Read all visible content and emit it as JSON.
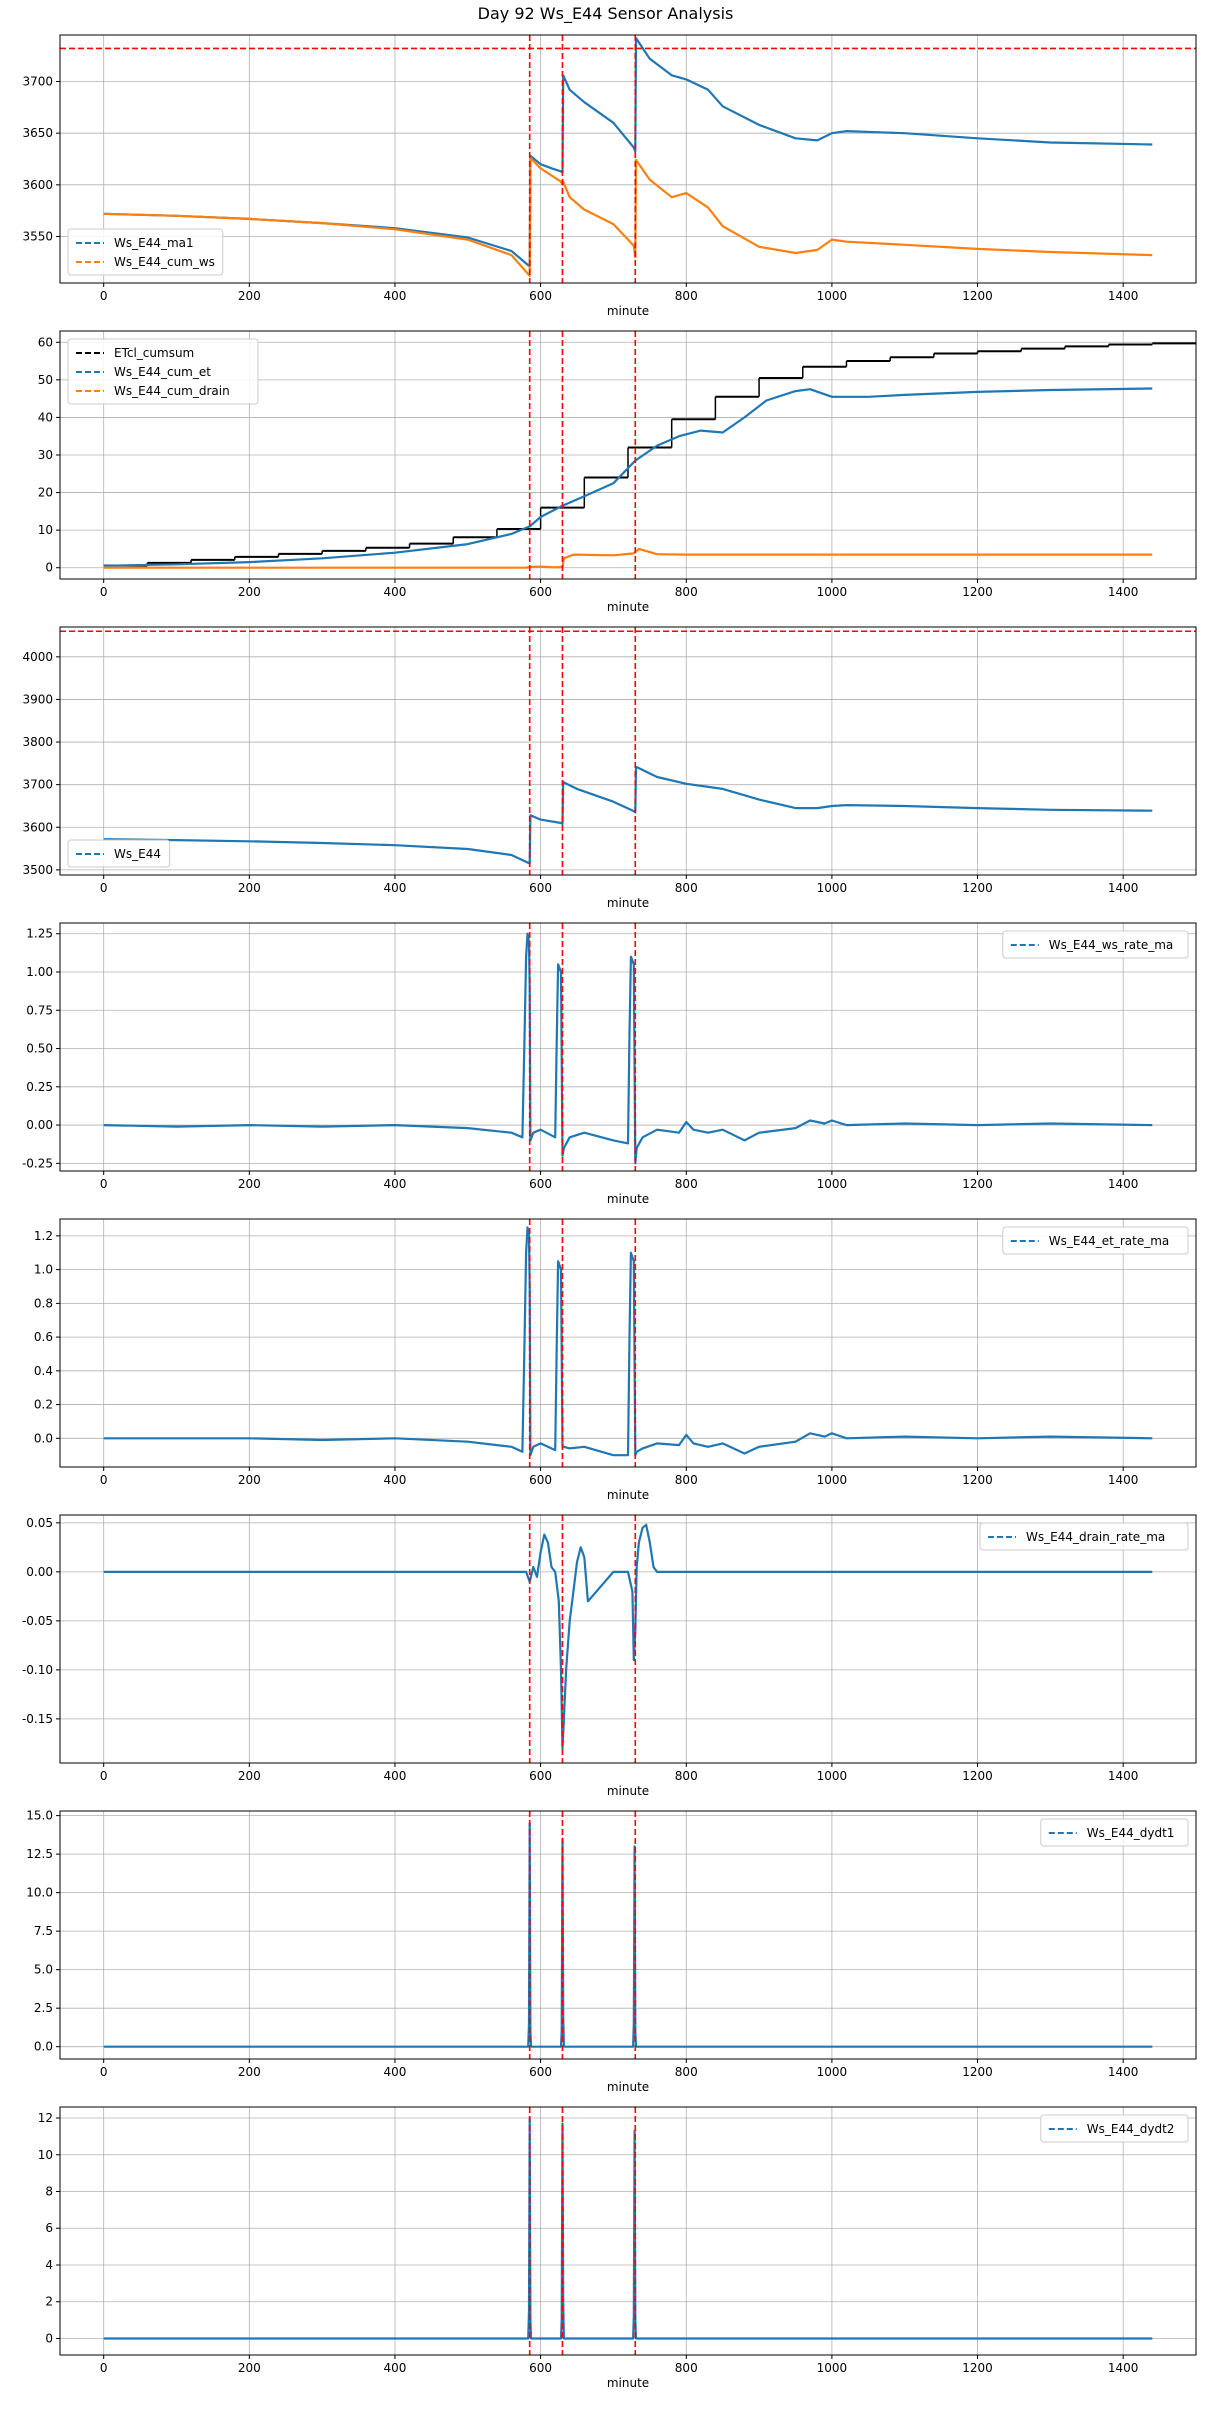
{
  "page_title": "Day 92 Ws_E44 Sensor Analysis",
  "colors": {
    "blue": "#1f77b4",
    "orange": "#ff7f0e",
    "black": "#000000",
    "red": "#ff0000",
    "grid": "#b0b0b0"
  },
  "chart_data": [
    {
      "type": "line",
      "xlabel": "minute",
      "xlim": [
        -60,
        1500
      ],
      "ylim": [
        3505,
        3745
      ],
      "xticks": [
        0,
        200,
        400,
        600,
        800,
        1000,
        1200,
        1400
      ],
      "yticks": [
        3550,
        3600,
        3650,
        3700
      ],
      "legend": "lower-left",
      "hlines": [
        3732
      ],
      "vlines": [
        585,
        630,
        730
      ],
      "series": [
        {
          "name": "Ws_E44_ma1",
          "color": "#1f77b4",
          "style": "dashed",
          "x": [
            0,
            100,
            200,
            300,
            400,
            500,
            560,
            585,
            586,
            600,
            615,
            628,
            630,
            631,
            640,
            660,
            700,
            728,
            730,
            731,
            750,
            780,
            800,
            830,
            850,
            900,
            950,
            980,
            1000,
            1020,
            1100,
            1200,
            1300,
            1440
          ],
          "y": [
            3572,
            3570,
            3567,
            3563,
            3558,
            3549,
            3536,
            3521,
            3628,
            3620,
            3616,
            3613,
            3612,
            3706,
            3692,
            3680,
            3660,
            3636,
            3632,
            3742,
            3722,
            3706,
            3702,
            3692,
            3676,
            3658,
            3645,
            3643,
            3650,
            3652,
            3650,
            3645,
            3641,
            3639
          ]
        },
        {
          "name": "Ws_E44_cum_ws",
          "color": "#ff7f0e",
          "style": "dashed",
          "x": [
            0,
            100,
            200,
            300,
            400,
            500,
            560,
            585,
            586,
            600,
            615,
            628,
            630,
            631,
            640,
            660,
            700,
            728,
            730,
            731,
            750,
            780,
            800,
            830,
            850,
            900,
            950,
            980,
            1000,
            1020,
            1100,
            1200,
            1300,
            1440
          ],
          "y": [
            3572,
            3570,
            3567,
            3563,
            3557,
            3547,
            3532,
            3512,
            3626,
            3616,
            3609,
            3603,
            3600,
            3603,
            3588,
            3576,
            3562,
            3541,
            3530,
            3624,
            3605,
            3588,
            3592,
            3578,
            3560,
            3540,
            3534,
            3537,
            3547,
            3545,
            3542,
            3538,
            3535,
            3532
          ]
        }
      ]
    },
    {
      "type": "line",
      "xlabel": "minute",
      "xlim": [
        -60,
        1500
      ],
      "ylim": [
        -3,
        63
      ],
      "xticks": [
        0,
        200,
        400,
        600,
        800,
        1000,
        1200,
        1400
      ],
      "yticks": [
        0,
        10,
        20,
        30,
        40,
        50,
        60
      ],
      "legend": "upper-left",
      "hlines": [],
      "vlines": [
        585,
        630,
        730
      ],
      "steps": {
        "name": "ETcl_cumsum",
        "color": "#000000",
        "style": "dashed",
        "x": [
          0,
          60,
          120,
          180,
          240,
          300,
          360,
          420,
          480,
          540,
          600,
          660,
          720,
          780,
          840,
          900,
          960,
          1020,
          1080,
          1140,
          1200,
          1260,
          1320,
          1380,
          1440
        ],
        "y": [
          0.6,
          1.3,
          2.1,
          2.9,
          3.7,
          4.5,
          5.3,
          6.4,
          8.1,
          10.3,
          16.0,
          24.0,
          32.0,
          39.5,
          45.5,
          50.5,
          53.5,
          55.0,
          56.0,
          57.0,
          57.6,
          58.3,
          58.9,
          59.4,
          59.7
        ]
      },
      "series": [
        {
          "name": "Ws_E44_cum_et",
          "color": "#1f77b4",
          "style": "dashed",
          "x": [
            0,
            100,
            200,
            300,
            400,
            500,
            560,
            585,
            600,
            630,
            660,
            700,
            730,
            760,
            790,
            820,
            850,
            880,
            910,
            950,
            970,
            1000,
            1050,
            1100,
            1200,
            1300,
            1440
          ],
          "y": [
            0.5,
            0.9,
            1.5,
            2.5,
            4.0,
            6.3,
            9.0,
            11.0,
            13.5,
            16.5,
            19.0,
            22.5,
            28.5,
            32.5,
            35.0,
            36.5,
            36.0,
            40.0,
            44.5,
            47.0,
            47.5,
            45.5,
            45.5,
            46.0,
            46.8,
            47.3,
            47.7
          ]
        },
        {
          "name": "Ws_E44_cum_drain",
          "color": "#ff7f0e",
          "style": "dashed",
          "x": [
            0,
            580,
            585,
            600,
            620,
            630,
            632,
            645,
            700,
            728,
            735,
            760,
            800,
            1440
          ],
          "y": [
            0,
            0,
            0.2,
            0.3,
            0.1,
            0.2,
            2.5,
            3.5,
            3.3,
            3.8,
            5.0,
            3.6,
            3.5,
            3.5
          ]
        }
      ]
    },
    {
      "type": "line",
      "xlabel": "minute",
      "xlim": [
        -60,
        1500
      ],
      "ylim": [
        3488,
        4070
      ],
      "xticks": [
        0,
        200,
        400,
        600,
        800,
        1000,
        1200,
        1400
      ],
      "yticks": [
        3500,
        3600,
        3700,
        3800,
        3900,
        4000
      ],
      "legend": "lower-left",
      "hlines": [
        4060
      ],
      "vlines": [
        585,
        630,
        730
      ],
      "series": [
        {
          "name": "Ws_E44",
          "color": "#1f77b4",
          "style": "dashed",
          "x": [
            0,
            100,
            200,
            300,
            400,
            500,
            560,
            585,
            586,
            600,
            628,
            630,
            631,
            650,
            700,
            728,
            730,
            731,
            760,
            800,
            850,
            900,
            950,
            980,
            1000,
            1020,
            1100,
            1200,
            1300,
            1440
          ],
          "y": [
            3572,
            3570,
            3567,
            3563,
            3558,
            3549,
            3535,
            3515,
            3628,
            3618,
            3610,
            3608,
            3706,
            3690,
            3660,
            3638,
            3635,
            3742,
            3718,
            3702,
            3690,
            3665,
            3645,
            3645,
            3650,
            3652,
            3650,
            3645,
            3641,
            3639
          ]
        }
      ]
    },
    {
      "type": "line",
      "xlabel": "minute",
      "xlim": [
        -60,
        1500
      ],
      "ylim": [
        -0.3,
        1.32
      ],
      "xticks": [
        0,
        200,
        400,
        600,
        800,
        1000,
        1200,
        1400
      ],
      "yticks": [
        -0.25,
        0.0,
        0.25,
        0.5,
        0.75,
        1.0,
        1.25
      ],
      "yticklabels": [
        "-0.25",
        "0.00",
        "0.25",
        "0.50",
        "0.75",
        "1.00",
        "1.25"
      ],
      "legend": "upper-right",
      "hlines": [],
      "vlines": [
        585,
        630,
        730
      ],
      "series": [
        {
          "name": "Ws_E44_ws_rate_ma",
          "color": "#1f77b4",
          "style": "dashed",
          "x": [
            0,
            100,
            200,
            300,
            400,
            500,
            540,
            560,
            575,
            578,
            580,
            582,
            584,
            585,
            586,
            590,
            600,
            620,
            622,
            624,
            628,
            630,
            632,
            640,
            660,
            700,
            720,
            722,
            724,
            728,
            730,
            732,
            740,
            760,
            790,
            800,
            810,
            830,
            850,
            880,
            900,
            950,
            970,
            990,
            1000,
            1020,
            1100,
            1200,
            1300,
            1440
          ],
          "y": [
            0,
            -0.01,
            0,
            -0.01,
            0,
            -0.02,
            -0.04,
            -0.05,
            -0.08,
            0.6,
            1.1,
            1.25,
            1.2,
            0.9,
            -0.1,
            -0.05,
            -0.03,
            -0.08,
            0.5,
            1.05,
            1.0,
            -0.2,
            -0.15,
            -0.08,
            -0.05,
            -0.1,
            -0.12,
            0.6,
            1.1,
            1.05,
            -0.25,
            -0.15,
            -0.08,
            -0.03,
            -0.05,
            0.02,
            -0.03,
            -0.05,
            -0.03,
            -0.1,
            -0.05,
            -0.02,
            0.03,
            0.01,
            0.03,
            0,
            0.01,
            0,
            0.01,
            0
          ]
        }
      ]
    },
    {
      "type": "line",
      "xlabel": "minute",
      "xlim": [
        -60,
        1500
      ],
      "ylim": [
        -0.17,
        1.3
      ],
      "xticks": [
        0,
        200,
        400,
        600,
        800,
        1000,
        1200,
        1400
      ],
      "yticks": [
        0.0,
        0.2,
        0.4,
        0.6,
        0.8,
        1.0,
        1.2
      ],
      "yticklabels": [
        "0.0",
        "0.2",
        "0.4",
        "0.6",
        "0.8",
        "1.0",
        "1.2"
      ],
      "legend": "upper-right",
      "hlines": [],
      "vlines": [
        585,
        630,
        730
      ],
      "series": [
        {
          "name": "Ws_E44_et_rate_ma",
          "color": "#1f77b4",
          "style": "dashed",
          "x": [
            0,
            100,
            200,
            300,
            400,
            500,
            540,
            560,
            575,
            578,
            580,
            582,
            584,
            585,
            586,
            590,
            600,
            620,
            622,
            624,
            628,
            630,
            632,
            640,
            660,
            700,
            720,
            722,
            724,
            728,
            730,
            732,
            740,
            760,
            790,
            800,
            810,
            830,
            850,
            880,
            900,
            950,
            970,
            990,
            1000,
            1020,
            1100,
            1200,
            1300,
            1440
          ],
          "y": [
            0,
            0,
            0,
            -0.01,
            0,
            -0.02,
            -0.04,
            -0.05,
            -0.08,
            0.6,
            1.1,
            1.25,
            1.2,
            0.9,
            -0.1,
            -0.05,
            -0.03,
            -0.07,
            0.5,
            1.05,
            1.0,
            -0.05,
            -0.05,
            -0.06,
            -0.05,
            -0.1,
            -0.1,
            0.6,
            1.1,
            1.05,
            -0.1,
            -0.08,
            -0.06,
            -0.03,
            -0.04,
            0.02,
            -0.03,
            -0.05,
            -0.03,
            -0.09,
            -0.05,
            -0.02,
            0.03,
            0.01,
            0.03,
            0,
            0.01,
            0,
            0.01,
            0
          ]
        }
      ]
    },
    {
      "type": "line",
      "xlabel": "minute",
      "xlim": [
        -60,
        1500
      ],
      "ylim": [
        -0.195,
        0.058
      ],
      "xticks": [
        0,
        200,
        400,
        600,
        800,
        1000,
        1200,
        1400
      ],
      "yticks": [
        -0.15,
        -0.1,
        -0.05,
        0.0,
        0.05
      ],
      "yticklabels": [
        "-0.15",
        "-0.10",
        "-0.05",
        "0.00",
        "0.05"
      ],
      "legend": "upper-right",
      "hlines": [],
      "vlines": [
        585,
        630,
        730
      ],
      "series": [
        {
          "name": "Ws_E44_drain_rate_ma",
          "color": "#1f77b4",
          "style": "dashed",
          "x": [
            0,
            580,
            585,
            590,
            595,
            600,
            605,
            610,
            615,
            620,
            625,
            628,
            630,
            632,
            635,
            640,
            645,
            650,
            655,
            660,
            665,
            700,
            720,
            726,
            728,
            730,
            732,
            735,
            740,
            745,
            750,
            755,
            760,
            1440
          ],
          "y": [
            0,
            0,
            -0.01,
            0.005,
            -0.005,
            0.02,
            0.038,
            0.03,
            0.005,
            0.0,
            -0.03,
            -0.1,
            -0.18,
            -0.15,
            -0.1,
            -0.05,
            -0.02,
            0.01,
            0.025,
            0.015,
            -0.03,
            0,
            0,
            -0.02,
            -0.09,
            -0.06,
            0.005,
            0.03,
            0.045,
            0.048,
            0.03,
            0.005,
            0,
            0
          ]
        }
      ]
    },
    {
      "type": "line",
      "xlabel": "minute",
      "xlim": [
        -60,
        1500
      ],
      "ylim": [
        -0.8,
        15.3
      ],
      "xticks": [
        0,
        200,
        400,
        600,
        800,
        1000,
        1200,
        1400
      ],
      "yticks": [
        0.0,
        2.5,
        5.0,
        7.5,
        10.0,
        12.5,
        15.0
      ],
      "yticklabels": [
        "0.0",
        "2.5",
        "5.0",
        "7.5",
        "10.0",
        "12.5",
        "15.0"
      ],
      "legend": "upper-right",
      "hlines": [],
      "vlines": [
        585,
        630,
        730
      ],
      "series": [
        {
          "name": "Ws_E44_dydt1",
          "color": "#1f77b4",
          "style": "dashed",
          "x": [
            0,
            200,
            400,
            583,
            584,
            585,
            586,
            587,
            600,
            628,
            629,
            630,
            631,
            632,
            700,
            727,
            728,
            729,
            730,
            731,
            800,
            1000,
            1200,
            1440
          ],
          "y": [
            0,
            0,
            0,
            0,
            1.5,
            14.5,
            1.0,
            0,
            0,
            0,
            1.0,
            13.5,
            2.0,
            0,
            0,
            0,
            1.5,
            13.0,
            1.0,
            0,
            0,
            0,
            0,
            0
          ]
        }
      ]
    },
    {
      "type": "line",
      "xlabel": "minute",
      "xlim": [
        -60,
        1500
      ],
      "ylim": [
        -0.9,
        12.6
      ],
      "xticks": [
        0,
        200,
        400,
        600,
        800,
        1000,
        1200,
        1400
      ],
      "yticks": [
        0,
        2,
        4,
        6,
        8,
        10,
        12
      ],
      "legend": "upper-right",
      "hlines": [],
      "vlines": [
        585,
        630,
        730
      ],
      "series": [
        {
          "name": "Ws_E44_dydt2",
          "color": "#1f77b4",
          "style": "dashed",
          "x": [
            0,
            200,
            400,
            583,
            584,
            585,
            586,
            587,
            600,
            628,
            629,
            630,
            631,
            632,
            700,
            727,
            728,
            729,
            730,
            731,
            800,
            1000,
            1200,
            1440
          ],
          "y": [
            0,
            0,
            0,
            0,
            1.5,
            12.0,
            1.0,
            0,
            0,
            0,
            1.0,
            11.7,
            2.0,
            0,
            0,
            0,
            1.2,
            11.3,
            1.0,
            0,
            0,
            0,
            0,
            0
          ]
        }
      ]
    }
  ]
}
